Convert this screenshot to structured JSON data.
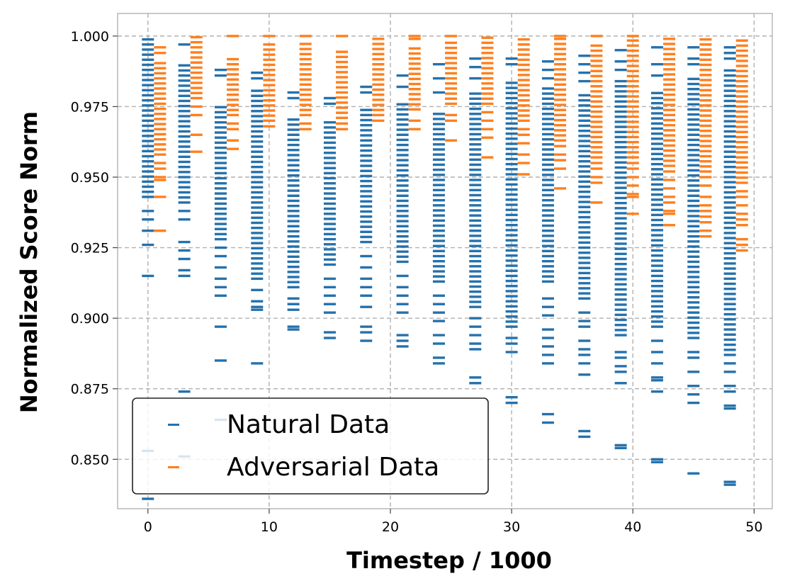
{
  "chart_data": {
    "type": "scatter",
    "title": "",
    "xlabel": "Timestep / 1000",
    "ylabel": "Normalized Score Norm",
    "xlim": [
      -2.5,
      51.5
    ],
    "ylim": [
      0.8325,
      1.008
    ],
    "grid": true,
    "legend_position": "lower-left",
    "x_ticks": [
      "0",
      "10",
      "20",
      "30",
      "40",
      "50"
    ],
    "y_ticks": [
      "1.000",
      "0.975",
      "0.950",
      "0.925",
      "0.900",
      "0.875",
      "0.850"
    ],
    "marker": "hline",
    "series": [
      {
        "name": "Natural Data",
        "color": "#2571ac",
        "x": [
          0,
          3,
          6,
          9,
          12,
          15,
          18,
          21,
          24,
          27,
          30,
          33,
          36,
          39,
          42,
          45,
          48
        ],
        "dense_min": [
          0.943,
          0.941,
          0.928,
          0.914,
          0.911,
          0.919,
          0.927,
          0.92,
          0.913,
          0.904,
          0.897,
          0.913,
          0.907,
          0.894,
          0.897,
          0.893,
          0.887
        ],
        "dense_max": [
          1.0,
          0.99,
          0.975,
          0.981,
          0.971,
          0.97,
          0.975,
          0.976,
          0.973,
          0.98,
          0.985,
          0.982,
          0.98,
          0.985,
          0.98,
          0.985,
          0.988
        ],
        "outliers_high": [
          [],
          [
            0.997
          ],
          [
            0.988,
            0.986
          ],
          [
            0.987,
            0.985
          ],
          [
            0.98,
            0.978
          ],
          [
            0.978,
            0.976
          ],
          [
            0.982,
            0.98
          ],
          [
            0.986,
            0.982
          ],
          [
            0.99,
            0.985,
            0.98
          ],
          [
            0.992,
            0.989,
            0.985
          ],
          [
            0.992,
            0.99
          ],
          [
            0.991,
            0.988,
            0.985
          ],
          [
            0.993,
            0.99,
            0.987,
            0.984
          ],
          [
            0.995,
            0.991,
            0.988
          ],
          [
            0.996,
            0.99,
            0.986
          ],
          [
            0.996,
            0.992,
            0.99
          ],
          [
            0.996,
            0.994,
            0.992
          ]
        ],
        "outliers_low": [
          [
            0.938,
            0.935,
            0.931,
            0.926,
            0.915,
            0.853,
            0.836
          ],
          [
            0.938,
            0.935,
            0.927,
            0.924,
            0.921,
            0.917,
            0.915,
            0.874,
            0.851
          ],
          [
            0.925,
            0.922,
            0.918,
            0.914,
            0.911,
            0.908,
            0.897,
            0.885,
            0.864
          ],
          [
            0.91,
            0.906,
            0.904,
            0.903,
            0.884
          ],
          [
            0.907,
            0.905,
            0.903,
            0.897,
            0.896
          ],
          [
            0.914,
            0.911,
            0.908,
            0.905,
            0.902,
            0.895,
            0.893
          ],
          [
            0.922,
            0.918,
            0.914,
            0.911,
            0.908,
            0.904,
            0.897,
            0.895,
            0.892
          ],
          [
            0.915,
            0.911,
            0.908,
            0.905,
            0.902,
            0.894,
            0.892,
            0.89
          ],
          [
            0.908,
            0.905,
            0.902,
            0.899,
            0.894,
            0.891,
            0.886,
            0.884
          ],
          [
            0.9,
            0.897,
            0.894,
            0.891,
            0.889,
            0.879,
            0.877
          ],
          [
            0.893,
            0.891,
            0.888,
            0.872,
            0.87
          ],
          [
            0.907,
            0.904,
            0.901,
            0.896,
            0.893,
            0.89,
            0.887,
            0.884,
            0.866,
            0.863
          ],
          [
            0.902,
            0.899,
            0.897,
            0.892,
            0.889,
            0.887,
            0.884,
            0.88,
            0.86,
            0.858
          ],
          [
            0.888,
            0.886,
            0.883,
            0.881,
            0.877,
            0.855,
            0.854
          ],
          [
            0.892,
            0.888,
            0.884,
            0.879,
            0.878,
            0.874,
            0.85,
            0.849
          ],
          [
            0.888,
            0.886,
            0.881,
            0.876,
            0.873,
            0.87,
            0.845
          ],
          [
            0.884,
            0.881,
            0.876,
            0.874,
            0.869,
            0.868,
            0.842,
            0.841
          ]
        ]
      },
      {
        "name": "Adversarial Data",
        "color": "#ff7f1e",
        "x": [
          1,
          4,
          7,
          10,
          13,
          16,
          19,
          22,
          25,
          28,
          31,
          34,
          37,
          40,
          43,
          46,
          49
        ],
        "dense_min": [
          0.958,
          0.978,
          0.972,
          0.97,
          0.972,
          0.971,
          0.972,
          0.974,
          0.976,
          0.976,
          0.97,
          0.963,
          0.957,
          0.957,
          0.954,
          0.952,
          0.948
        ],
        "dense_max": [
          0.992,
          1.0,
          0.993,
          0.998,
          0.998,
          0.996,
          1.0,
          0.996,
          0.998,
          1.0,
          1.0,
          0.999,
          0.998,
          0.999,
          1.0,
          1.0,
          1.0
        ],
        "outliers_high": [
          [
            0.996,
            0.994
          ],
          [],
          [
            1.0
          ],
          [
            1.0
          ],
          [
            1.0
          ],
          [
            1.0
          ],
          [],
          [
            1.0,
            0.999
          ],
          [
            1.0
          ],
          [],
          [],
          [
            1.0
          ],
          [
            1.0
          ],
          [
            1.0
          ],
          [],
          [],
          []
        ],
        "outliers_low": [
          [
            0.955,
            0.953,
            0.95,
            0.949,
            0.943,
            0.931
          ],
          [
            0.975,
            0.972,
            0.965,
            0.959
          ],
          [
            0.969,
            0.967,
            0.963,
            0.96
          ],
          [
            0.968
          ],
          [
            0.969,
            0.967
          ],
          [
            0.969,
            0.967
          ],
          [
            0.97
          ],
          [
            0.97,
            0.967
          ],
          [
            0.972,
            0.97,
            0.963
          ],
          [
            0.973,
            0.97,
            0.967,
            0.964,
            0.957
          ],
          [
            0.967,
            0.965,
            0.962,
            0.958,
            0.955,
            0.951
          ],
          [
            0.961,
            0.958,
            0.956,
            0.953,
            0.946
          ],
          [
            0.955,
            0.953,
            0.95,
            0.948,
            0.941
          ],
          [
            0.955,
            0.953,
            0.95,
            0.947,
            0.944,
            0.943,
            0.937
          ],
          [
            0.952,
            0.949,
            0.946,
            0.943,
            0.941,
            0.938,
            0.937,
            0.933
          ],
          [
            0.95,
            0.947,
            0.943,
            0.94,
            0.938,
            0.936,
            0.934,
            0.931,
            0.929
          ],
          [
            0.945,
            0.943,
            0.94,
            0.937,
            0.935,
            0.933,
            0.928,
            0.926,
            0.924
          ]
        ]
      }
    ]
  }
}
